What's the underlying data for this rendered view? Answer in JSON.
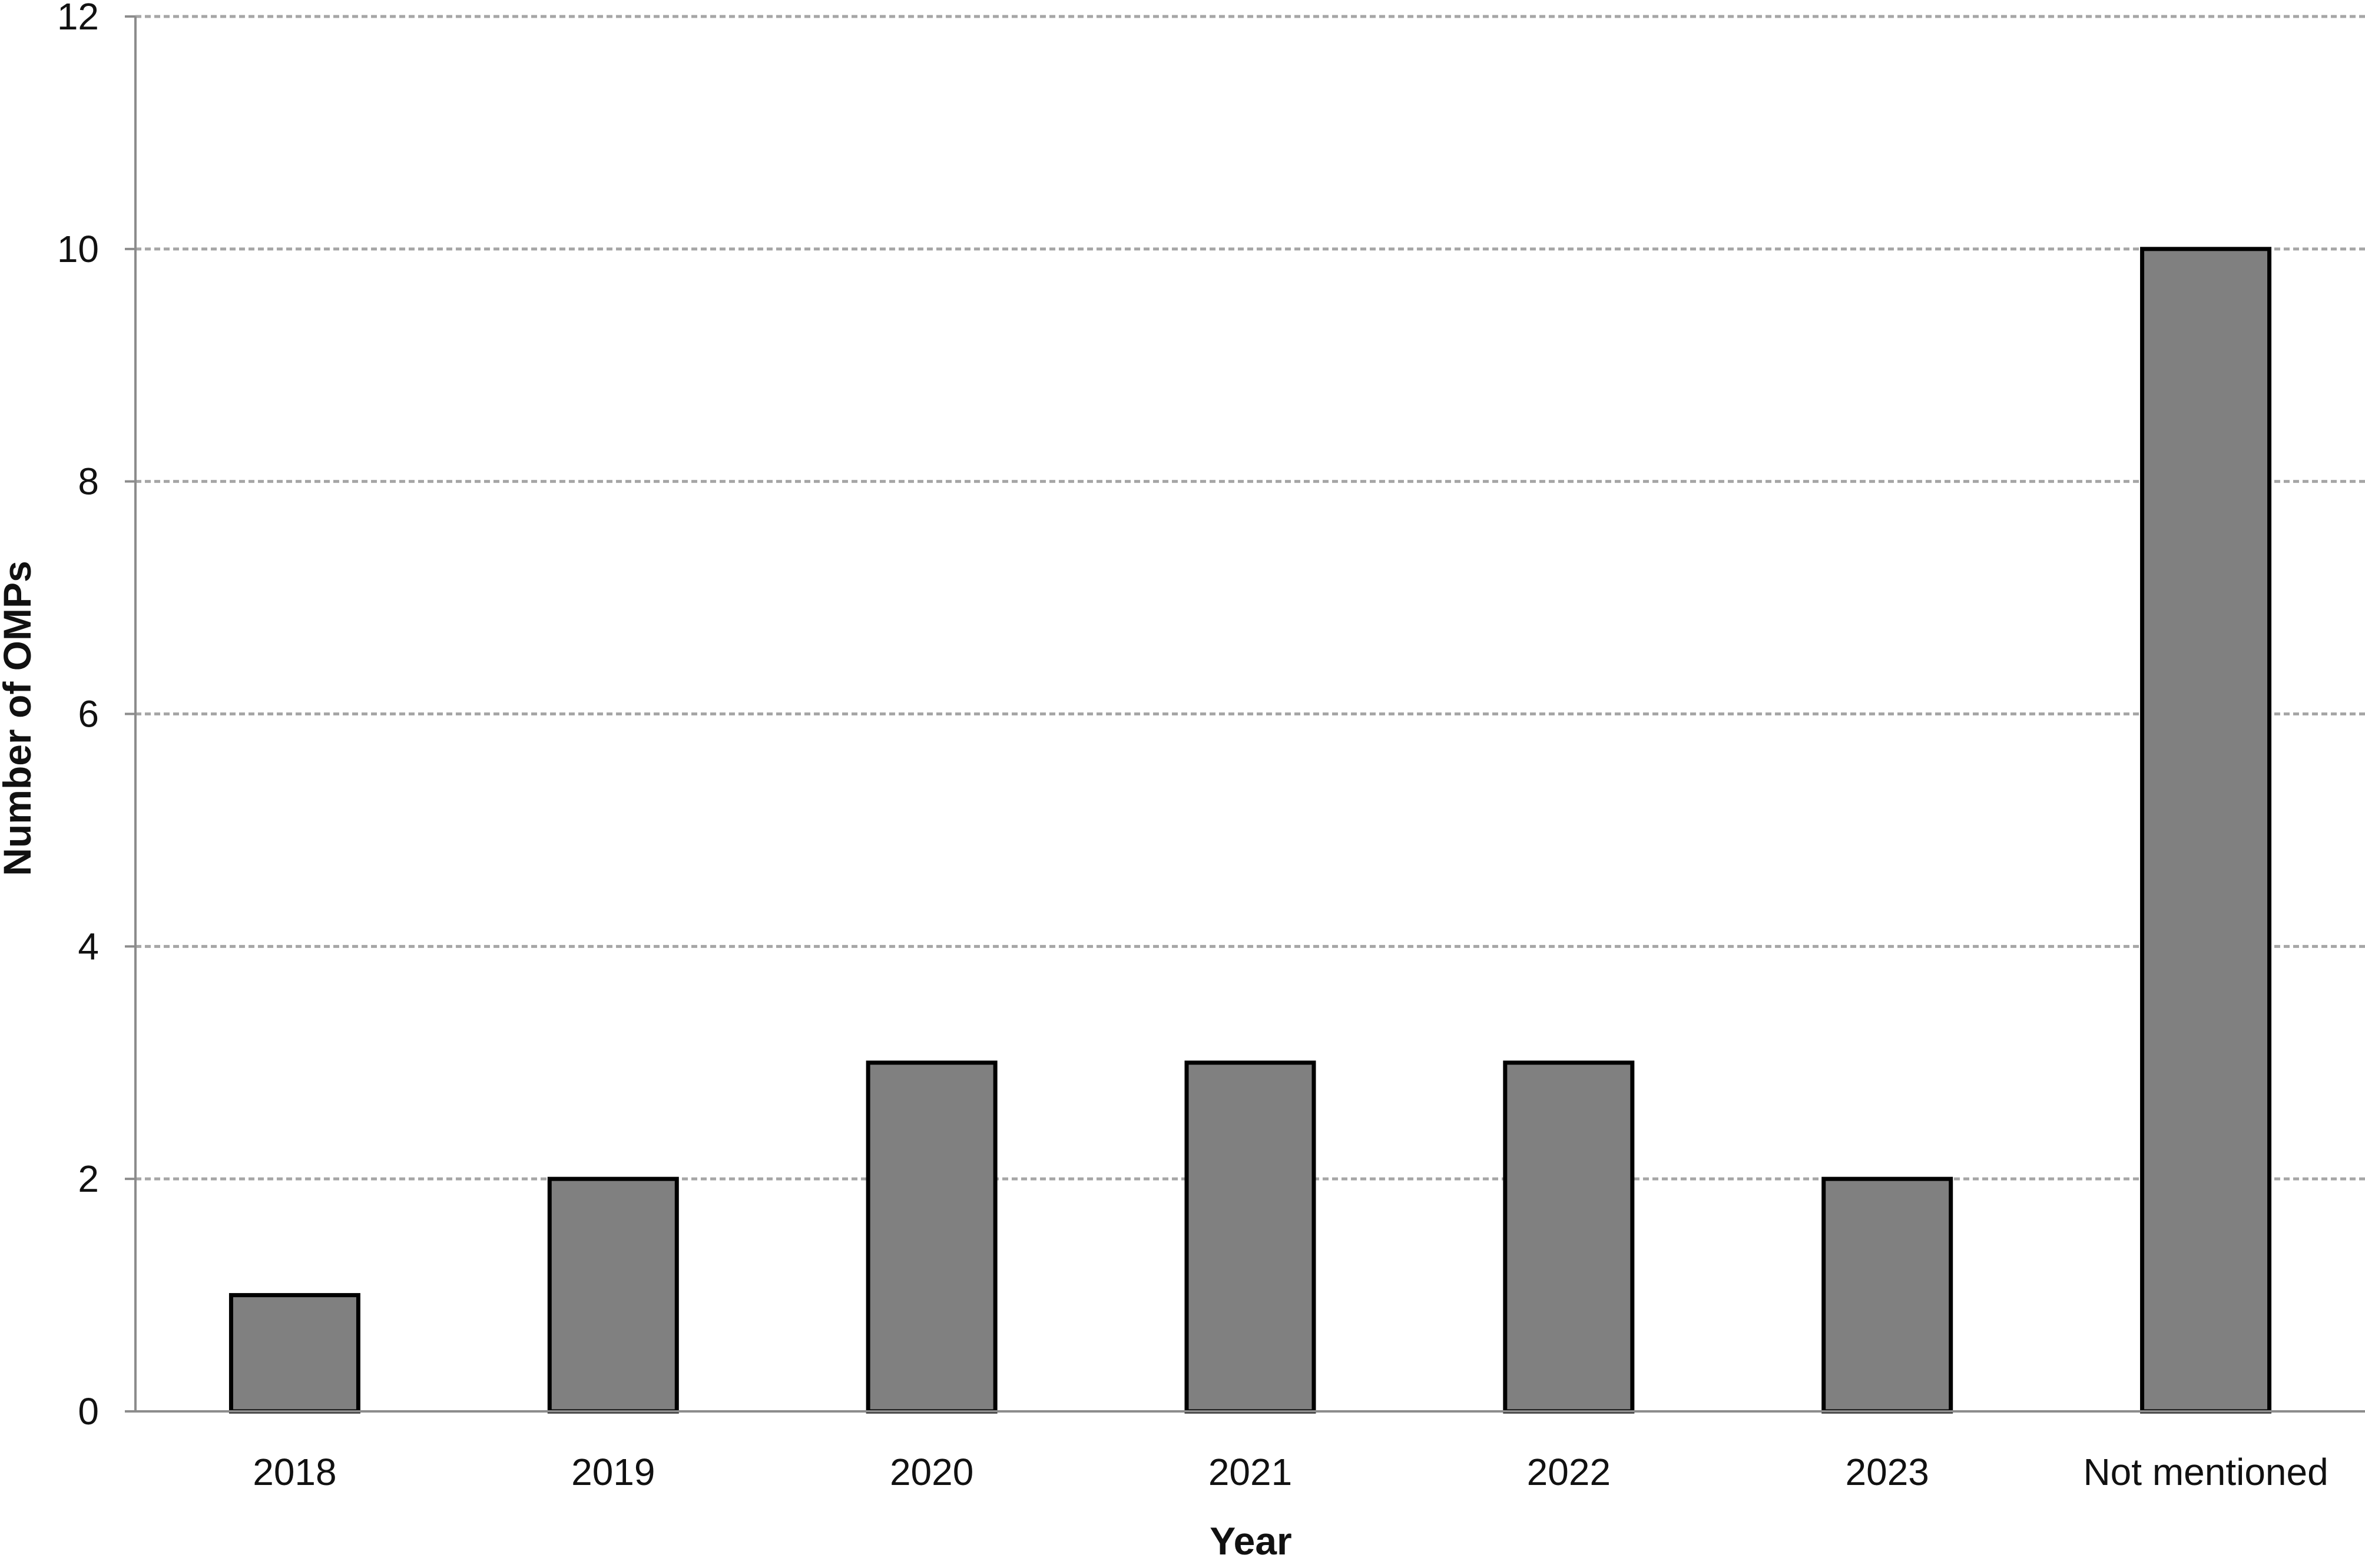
{
  "chart_data": {
    "type": "bar",
    "categories": [
      "2018",
      "2019",
      "2020",
      "2021",
      "2022",
      "2023",
      "Not mentioned"
    ],
    "values": [
      1,
      2,
      3,
      3,
      3,
      2,
      10
    ],
    "title": "",
    "xlabel": "Year",
    "ylabel": "Number of OMPs",
    "ylim": [
      0,
      12
    ],
    "yticks": [
      0,
      2,
      4,
      6,
      8,
      10,
      12
    ],
    "ytick_labels": [
      "0",
      "2",
      "4",
      "6",
      "8",
      "10",
      "12"
    ],
    "grid": "horizontal dashed",
    "legend": "none",
    "bar_color": "#808080",
    "bar_edge_color": "#000000",
    "grid_color": "#a6a6a6",
    "axis_color": "#8c8c8c"
  }
}
